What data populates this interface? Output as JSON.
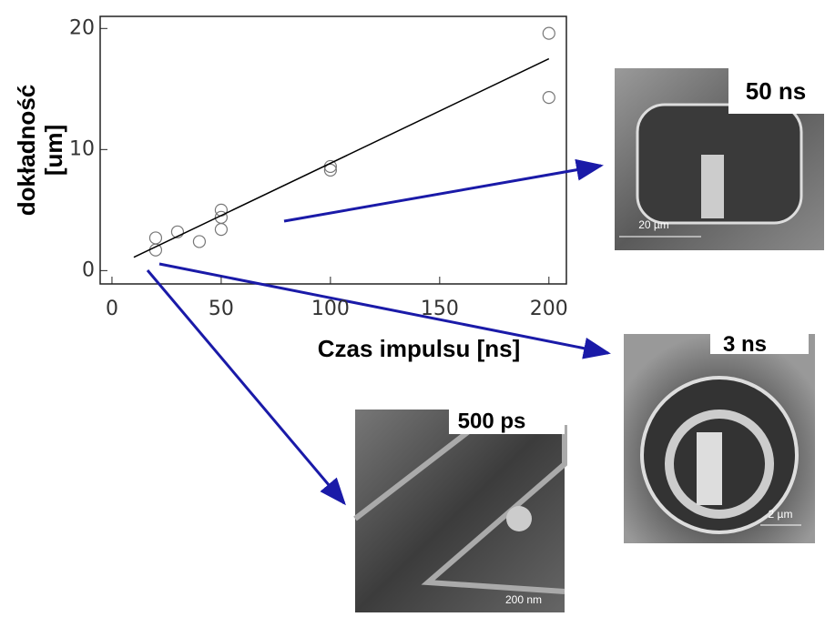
{
  "chart_data": {
    "type": "scatter",
    "x_label": "Czas impulsu [ns]",
    "y_label": [
      "dokładność",
      "[um]"
    ],
    "xlim": [
      -5.4,
      208
    ],
    "ylim": [
      -1.1,
      21
    ],
    "xticks": [
      0,
      50,
      100,
      150,
      200
    ],
    "yticks": [
      0,
      10,
      20
    ],
    "grid": false,
    "series": [
      {
        "type": "scatter",
        "color": "#777777",
        "x": [
          20,
          20,
          30,
          40,
          50,
          50,
          50,
          100,
          100,
          200,
          200
        ],
        "y": [
          2.7,
          1.7,
          3.2,
          2.4,
          5.0,
          4.4,
          3.4,
          8.6,
          8.3,
          19.6,
          14.3
        ]
      },
      {
        "type": "line",
        "color": "#000000",
        "x": [
          10,
          200
        ],
        "y": [
          1.1,
          17.5
        ]
      }
    ]
  },
  "images": [
    {
      "label": "50 ns",
      "scale": "20 µm"
    },
    {
      "label": "3 ns",
      "scale": "2 µm"
    },
    {
      "label": "500 ps",
      "scale": "200 nm"
    }
  ]
}
